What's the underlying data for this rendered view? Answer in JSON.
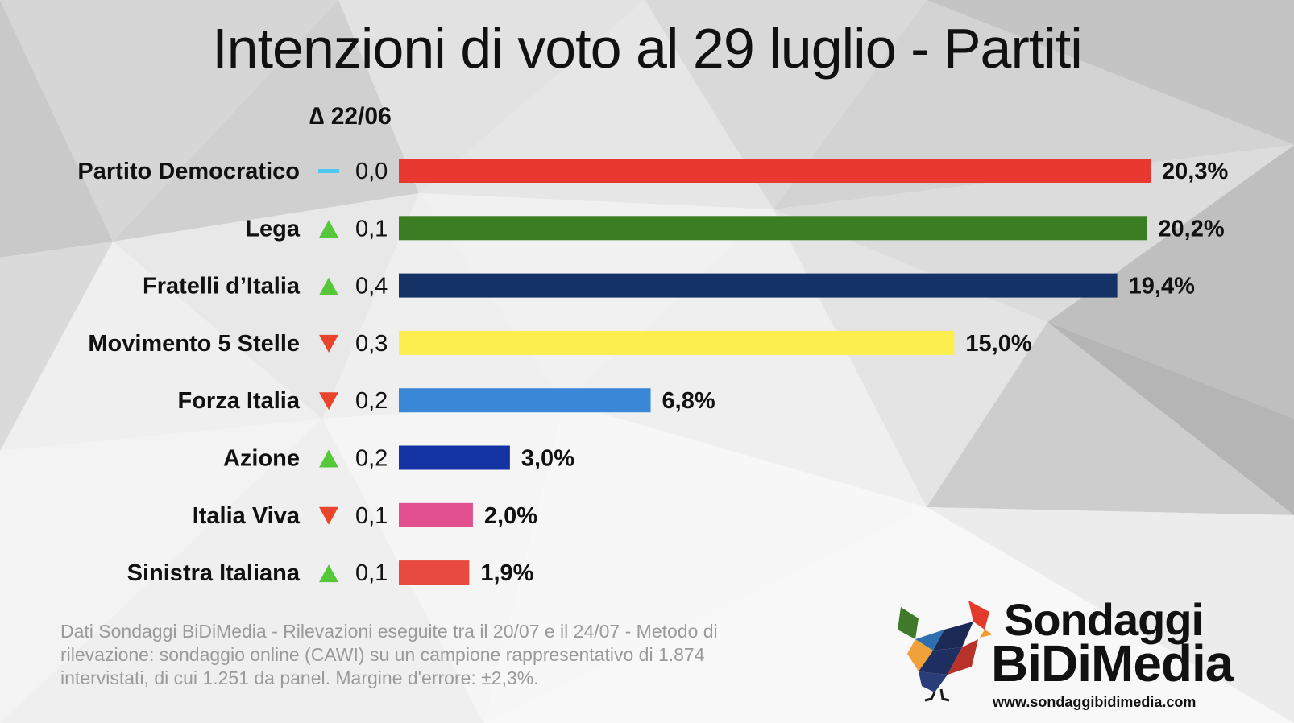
{
  "header": {
    "title": "Intenzioni di voto al 29 luglio - Partiti",
    "delta_label": "∆ 22/06"
  },
  "chart_data": {
    "type": "bar",
    "orientation": "horizontal",
    "title": "Intenzioni di voto al 29 luglio - Partiti",
    "value_unit": "%",
    "xlim": [
      0,
      20.3
    ],
    "categories": [
      "Partito Democratico",
      "Lega",
      "Fratelli d’Italia",
      "Movimento 5 Stelle",
      "Forza Italia",
      "Azione",
      "Italia Viva",
      "Sinistra Italiana"
    ],
    "values": [
      20.3,
      20.2,
      19.4,
      15.0,
      6.8,
      3.0,
      2.0,
      1.9
    ],
    "value_labels": [
      "20,3%",
      "20,2%",
      "19,4%",
      "15,0%",
      "6,8%",
      "3,0%",
      "2,0%",
      "1,9%"
    ],
    "bar_colors": [
      "#e8382f",
      "#3a7d22",
      "#143266",
      "#fcee4f",
      "#3a87d8",
      "#1534a4",
      "#e2508f",
      "#e84a3f"
    ],
    "delta_header": "∆ 22/06",
    "deltas": [
      {
        "trend": "flat",
        "value": "0,0"
      },
      {
        "trend": "up",
        "value": "0,1"
      },
      {
        "trend": "up",
        "value": "0,4"
      },
      {
        "trend": "down",
        "value": "0,3"
      },
      {
        "trend": "down",
        "value": "0,2"
      },
      {
        "trend": "up",
        "value": "0,2"
      },
      {
        "trend": "down",
        "value": "0,1"
      },
      {
        "trend": "up",
        "value": "0,1"
      }
    ],
    "trend_colors": {
      "up": "#55c83a",
      "down": "#e8452c",
      "flat": "#4fc7f2"
    }
  },
  "footnote": "Dati Sondaggi BiDiMedia - Rilevazioni eseguite tra il 20/07 e il 24/07 - Metodo di rilevazione: sondaggio online (CAWI) su un campione rappresentativo di 1.874 intervistati, di cui 1.251 da panel. Margine d'errore: ±2,3%.",
  "logo": {
    "line1": "Sondaggi",
    "line2": "BiDiMedia",
    "url": "www.sondaggibidimedia.com",
    "icon": "rooster-logo-icon"
  }
}
